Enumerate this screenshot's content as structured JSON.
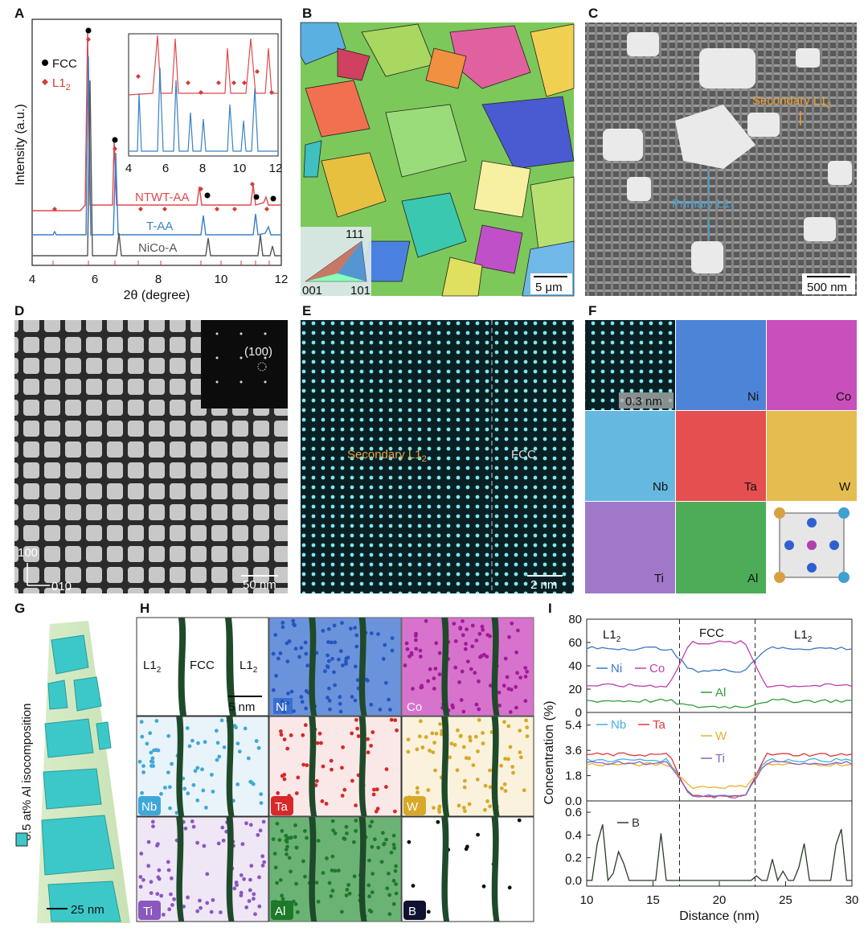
{
  "panel_letters": [
    "A",
    "B",
    "C",
    "D",
    "E",
    "F",
    "G",
    "H",
    "I"
  ],
  "A": {
    "ylabel": "Intensity (a.u.)",
    "xlabel": "2θ (degree)",
    "xticks": [
      "4",
      "6",
      "8",
      "10",
      "12"
    ],
    "inset_xticks": [
      "4",
      "6",
      "8",
      "10",
      "12"
    ],
    "legend_fcc": "FCC",
    "legend_l12": "L1",
    "legend_l12_sub": "2",
    "curve_labels": [
      "NTWT-AA",
      "T-AA",
      "NiCo-A"
    ],
    "colors": {
      "ntwt": "#e0484d",
      "taa": "#3a80c8",
      "nicoa": "#555555",
      "fcc": "#000000",
      "l12": "#d23c3c"
    }
  },
  "B": {
    "ipf_top": "111",
    "ipf_left": "001",
    "ipf_right": "101",
    "scalebar": "5 μm"
  },
  "C": {
    "secondary": "Secondary L1",
    "primary": "Primary L1",
    "sub": "2",
    "scalebar": "500 nm"
  },
  "D": {
    "diffraction": "(100)",
    "axis_v": "100",
    "axis_h": "010",
    "scalebar": "50 nm"
  },
  "E": {
    "left": "Secondary L1",
    "sub": "2",
    "right": "FCC",
    "scalebar": "2 nm"
  },
  "F": {
    "scalebar": "0.3 nm",
    "elements": [
      "Ni",
      "Co",
      "Nb",
      "Ta",
      "W",
      "Ti",
      "Al"
    ],
    "colors": {
      "Ni": "#2f6fd0",
      "Co": "#c030b0",
      "Nb": "#3fa8d8",
      "Ta": "#e03030",
      "W": "#e0b030",
      "Ti": "#9060c0",
      "Al": "#2e9e3a"
    }
  },
  "G": {
    "label": "8.5 at% Al isocomposition",
    "scalebar": "25 nm"
  },
  "H": {
    "l12_left": "L1",
    "fcc": "FCC",
    "l12_right": "L1",
    "sub": "2",
    "scalebar": "5 nm",
    "elements": [
      "Ni",
      "Co",
      "Nb",
      "Ta",
      "W",
      "Ti",
      "Al",
      "B"
    ]
  },
  "I": {
    "ylabel": "Concentration (%)",
    "xlabel": "Distance (nm)",
    "xticks": [
      "10",
      "15",
      "20",
      "25",
      "30"
    ],
    "top_yticks": [
      "0",
      "20",
      "40",
      "60",
      "80"
    ],
    "mid_yticks": [
      "0.0",
      "1.8",
      "3.6",
      "5.4"
    ],
    "bot_yticks": [
      "0.0",
      "0.2",
      "0.4",
      "0.6"
    ],
    "region_left": "L1",
    "region_mid": "FCC",
    "region_right": "L1",
    "sub": "2",
    "legend_top": [
      "Ni",
      "Co",
      "Al"
    ],
    "legend_mid": [
      "Nb",
      "Ta",
      "W",
      "Ti"
    ],
    "legend_bot": [
      "B"
    ]
  },
  "chart_data": {
    "type": "line",
    "title": "",
    "xlabel": "Distance (nm)",
    "ylabel": "Concentration (%)",
    "xlim": [
      10,
      30
    ],
    "interfaces": [
      17,
      22.7
    ],
    "series": [
      {
        "name": "Ni",
        "values_by_region": {
          "L1_2": 55,
          "FCC": 36
        }
      },
      {
        "name": "Co",
        "values_by_region": {
          "L1_2": 23,
          "FCC": 60
        }
      },
      {
        "name": "Al",
        "values_by_region": {
          "L1_2": 10,
          "FCC": 5
        }
      },
      {
        "name": "Nb",
        "values_by_region": {
          "L1_2": 2.9,
          "FCC": 0.4
        }
      },
      {
        "name": "Ta",
        "values_by_region": {
          "L1_2": 3.3,
          "FCC": 0.3
        }
      },
      {
        "name": "W",
        "values_by_region": {
          "L1_2": 2.6,
          "FCC": 1.0
        }
      },
      {
        "name": "Ti",
        "values_by_region": {
          "L1_2": 2.7,
          "FCC": 0.3
        }
      },
      {
        "name": "B",
        "values_by_region": {
          "L1_2": 0.1,
          "FCC": 0.0
        }
      }
    ]
  }
}
